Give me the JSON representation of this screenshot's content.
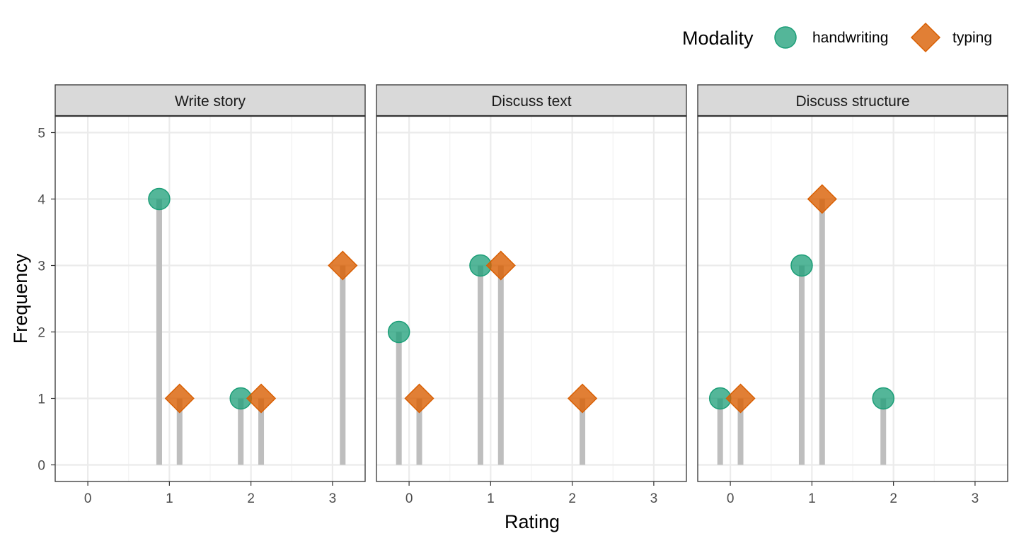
{
  "chart_data": {
    "type": "lollipop",
    "xlabel": "Rating",
    "ylabel": "Frequency",
    "xlim": [
      -0.4,
      3.4
    ],
    "ylim": [
      -0.25,
      5.25
    ],
    "x_ticks": [
      0,
      1,
      2,
      3
    ],
    "y_ticks": [
      0,
      1,
      2,
      3,
      4,
      5
    ],
    "grid": true,
    "legend": {
      "title": "Modality",
      "position": "top-right",
      "entries": [
        {
          "name": "handwriting",
          "shape": "circle",
          "color": "#1b9e77"
        },
        {
          "name": "typing",
          "shape": "diamond",
          "color": "#d95f02"
        }
      ]
    },
    "stem_color": "#bebebe",
    "dodge": 0.125,
    "panels": [
      {
        "title": "Write story",
        "series": [
          {
            "name": "handwriting",
            "x": [
              1,
              2
            ],
            "y": [
              4,
              1
            ]
          },
          {
            "name": "typing",
            "x": [
              1,
              2,
              3
            ],
            "y": [
              1,
              1,
              3
            ]
          }
        ]
      },
      {
        "title": "Discuss text",
        "series": [
          {
            "name": "handwriting",
            "x": [
              0,
              1
            ],
            "y": [
              2,
              3
            ]
          },
          {
            "name": "typing",
            "x": [
              0,
              1,
              2
            ],
            "y": [
              1,
              3,
              1
            ]
          }
        ]
      },
      {
        "title": "Discuss structure",
        "series": [
          {
            "name": "handwriting",
            "x": [
              0,
              1,
              2
            ],
            "y": [
              1,
              3,
              1
            ]
          },
          {
            "name": "typing",
            "x": [
              0,
              1
            ],
            "y": [
              1,
              4
            ]
          }
        ]
      }
    ]
  }
}
